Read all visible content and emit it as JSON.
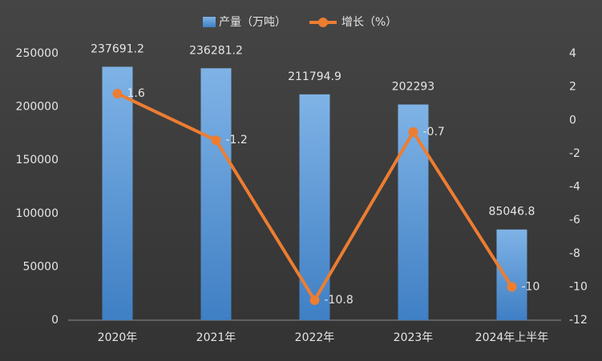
{
  "chart_data": {
    "type": "bar-line",
    "categories": [
      "2020年",
      "2021年",
      "2022年",
      "2023年",
      "2024年上半年"
    ],
    "series": [
      {
        "name": "产量（万吨）",
        "type": "bar",
        "color": "#5b9bd5",
        "values": [
          237691.2,
          236281.2,
          211794.9,
          202293,
          85046.8
        ]
      },
      {
        "name": "增长（%）",
        "type": "line",
        "axis": "y2",
        "color": "#ed7d31",
        "values": [
          1.6,
          -1.2,
          -10.8,
          -0.7,
          -10
        ]
      }
    ],
    "ylim": [
      0,
      250000
    ],
    "yticks": [
      0,
      50000,
      100000,
      150000,
      200000,
      250000
    ],
    "y2lim": [
      -12,
      4
    ],
    "y2ticks": [
      -12,
      -10,
      -8,
      -6,
      -4,
      -2,
      0,
      2,
      4
    ],
    "legend": "top"
  }
}
